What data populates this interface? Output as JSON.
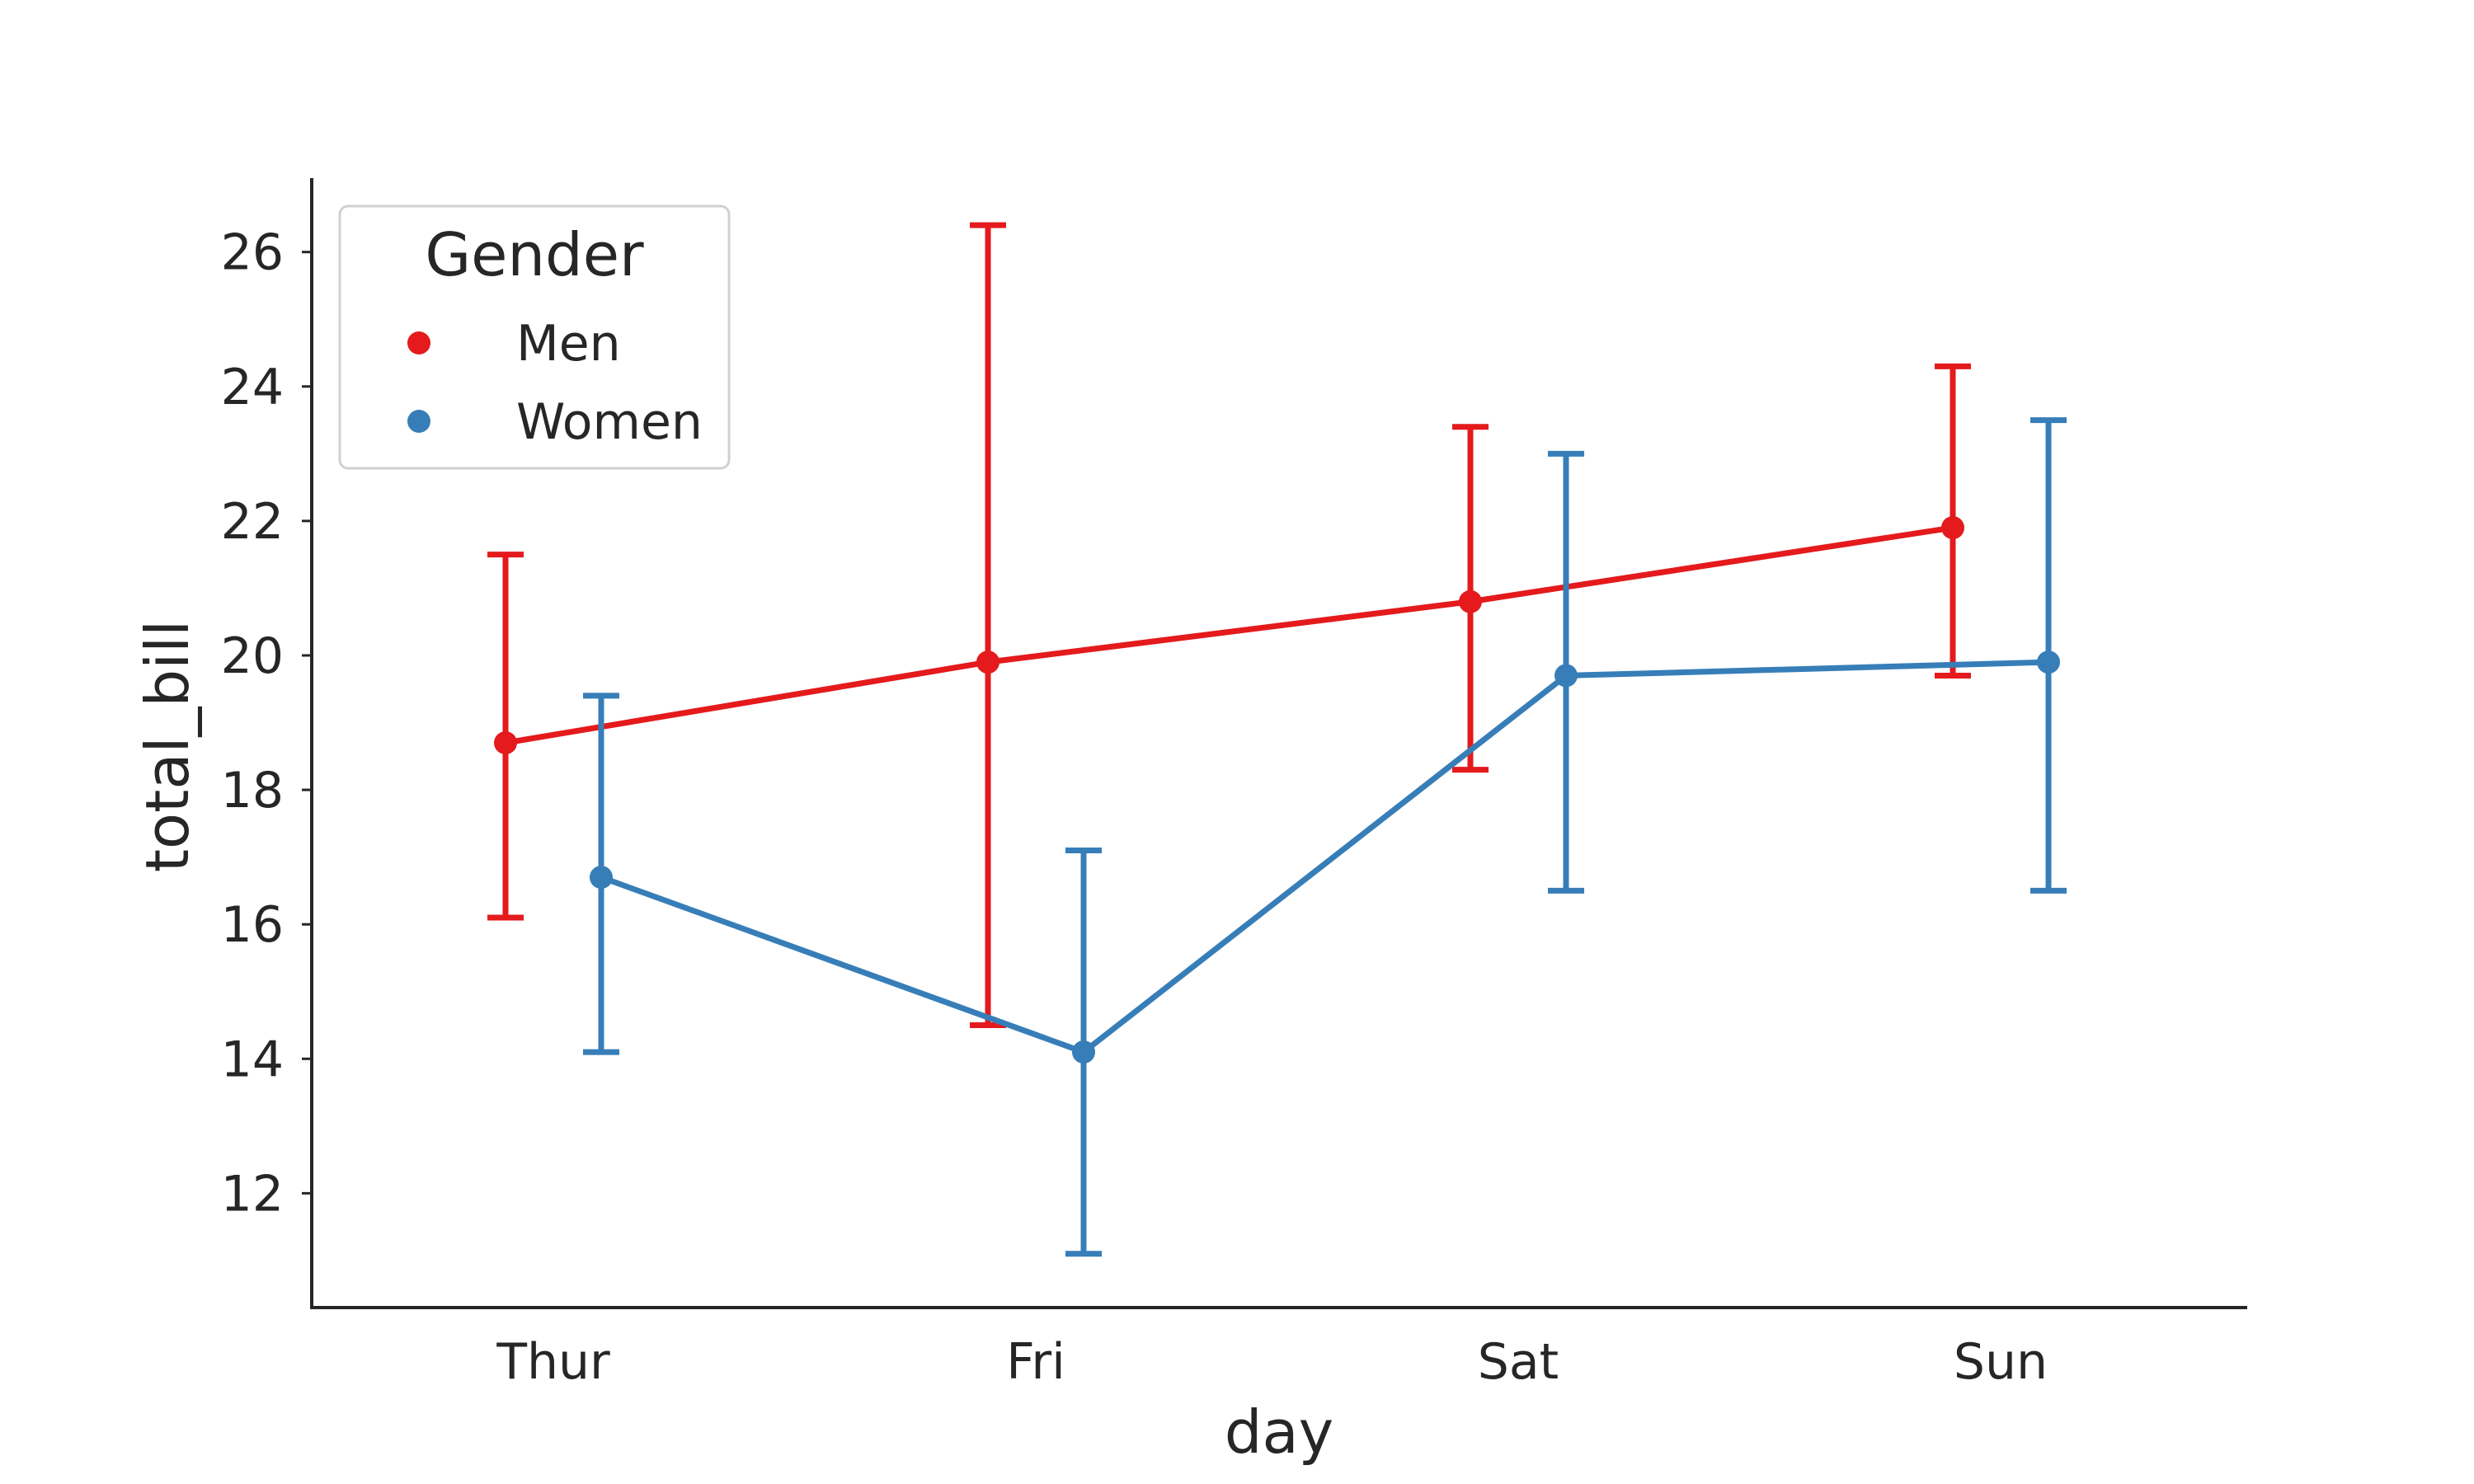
{
  "chart_data": {
    "type": "line",
    "title": "",
    "xlabel": "day",
    "ylabel": "total_bill",
    "categories": [
      "Thur",
      "Fri",
      "Sat",
      "Sun"
    ],
    "ylim": [
      10.3,
      27.1
    ],
    "yticks": [
      "12",
      "14",
      "16",
      "18",
      "20",
      "22",
      "24",
      "26"
    ],
    "grid": false,
    "legend": {
      "title": "Gender",
      "placement": "top-left"
    },
    "series": [
      {
        "name": "Men",
        "color": "#e41a1c",
        "values": [
          18.7,
          19.9,
          20.8,
          21.9
        ],
        "ci_low": [
          16.1,
          14.5,
          18.3,
          19.7
        ],
        "ci_high": [
          21.5,
          26.4,
          23.4,
          24.3
        ]
      },
      {
        "name": "Women",
        "color": "#377eb8",
        "values": [
          16.7,
          14.1,
          19.7,
          19.9
        ],
        "ci_low": [
          14.1,
          11.1,
          16.5,
          16.5
        ],
        "ci_high": [
          19.4,
          17.1,
          23.0,
          23.5
        ]
      }
    ]
  }
}
